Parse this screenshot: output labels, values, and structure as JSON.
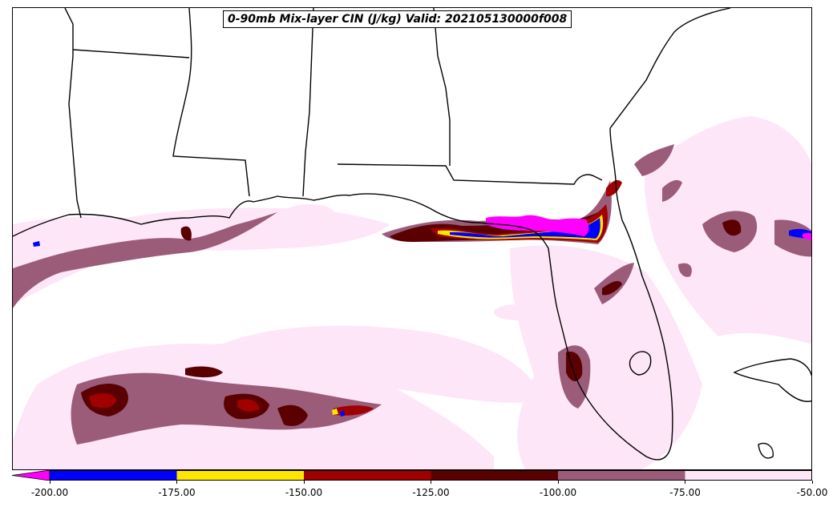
{
  "title": "0-90mb Mix-layer CIN (J/kg) Valid: 202105130000f008",
  "colorbar": {
    "extend": "min",
    "extend_color": "#ff00ff",
    "bins": [
      {
        "from": -200,
        "to": -175,
        "color": "#0000ff"
      },
      {
        "from": -175,
        "to": -150,
        "color": "#ffe600"
      },
      {
        "from": -150,
        "to": -125,
        "color": "#a00000"
      },
      {
        "from": -125,
        "to": -100,
        "color": "#5a0000"
      },
      {
        "from": -100,
        "to": -75,
        "color": "#9b5c7a"
      },
      {
        "from": -75,
        "to": -50,
        "color": "#fde6f8"
      }
    ],
    "ticks": [
      "-200.00",
      "-175.00",
      "-150.00",
      "-125.00",
      "-100.00",
      "-75.00",
      "-50.00"
    ]
  },
  "colors": {
    "light_pink": "#fde6f8",
    "mauve": "#9b5c7a",
    "dark_maroon": "#5a0000",
    "red": "#a00000",
    "yellow": "#ffe600",
    "blue": "#0000ff",
    "magenta": "#ff00ff",
    "coastline": "#000000"
  }
}
